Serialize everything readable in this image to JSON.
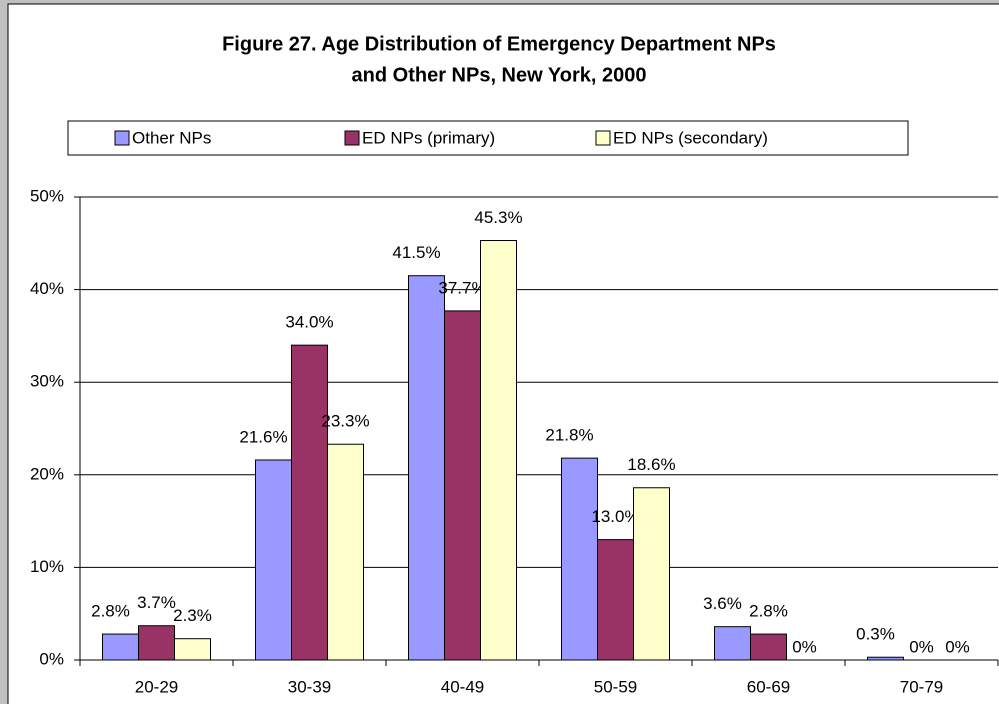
{
  "chart_data": {
    "type": "bar",
    "title": [
      "Figure 27.  Age Distribution of Emergency Department NPs",
      "and Other NPs, New York, 2000"
    ],
    "categories": [
      "20-29",
      "30-39",
      "40-49",
      "50-59",
      "60-69",
      "70-79"
    ],
    "series": [
      {
        "name": "Other NPs",
        "color": "#9999ff",
        "values": [
          2.8,
          21.6,
          41.5,
          21.8,
          3.6,
          0.3
        ],
        "value_labels": [
          "2.8%",
          "21.6%",
          "41.5%",
          "21.8%",
          "3.6%",
          "0.3%"
        ]
      },
      {
        "name": "ED NPs (primary)",
        "color": "#993366",
        "values": [
          3.7,
          34.0,
          37.7,
          13.0,
          2.8,
          0
        ],
        "value_labels": [
          "3.7%",
          "34.0%",
          "37.7%",
          "13.0%",
          "2.8%",
          "0%"
        ]
      },
      {
        "name": "ED NPs (secondary)",
        "color": "#ffffcc",
        "values": [
          2.3,
          23.3,
          45.3,
          18.6,
          0,
          0
        ],
        "value_labels": [
          "2.3%",
          "23.3%",
          "45.3%",
          "18.6%",
          "0%",
          "0%"
        ]
      }
    ],
    "ylim": [
      0,
      50
    ],
    "yticks": [
      {
        "value": 0,
        "label": "0%"
      },
      {
        "value": 10,
        "label": "10%"
      },
      {
        "value": 20,
        "label": "20%"
      },
      {
        "value": 30,
        "label": "30%"
      },
      {
        "value": 40,
        "label": "40%"
      },
      {
        "value": 50,
        "label": "50%"
      }
    ],
    "grid": true,
    "legend": "top"
  }
}
